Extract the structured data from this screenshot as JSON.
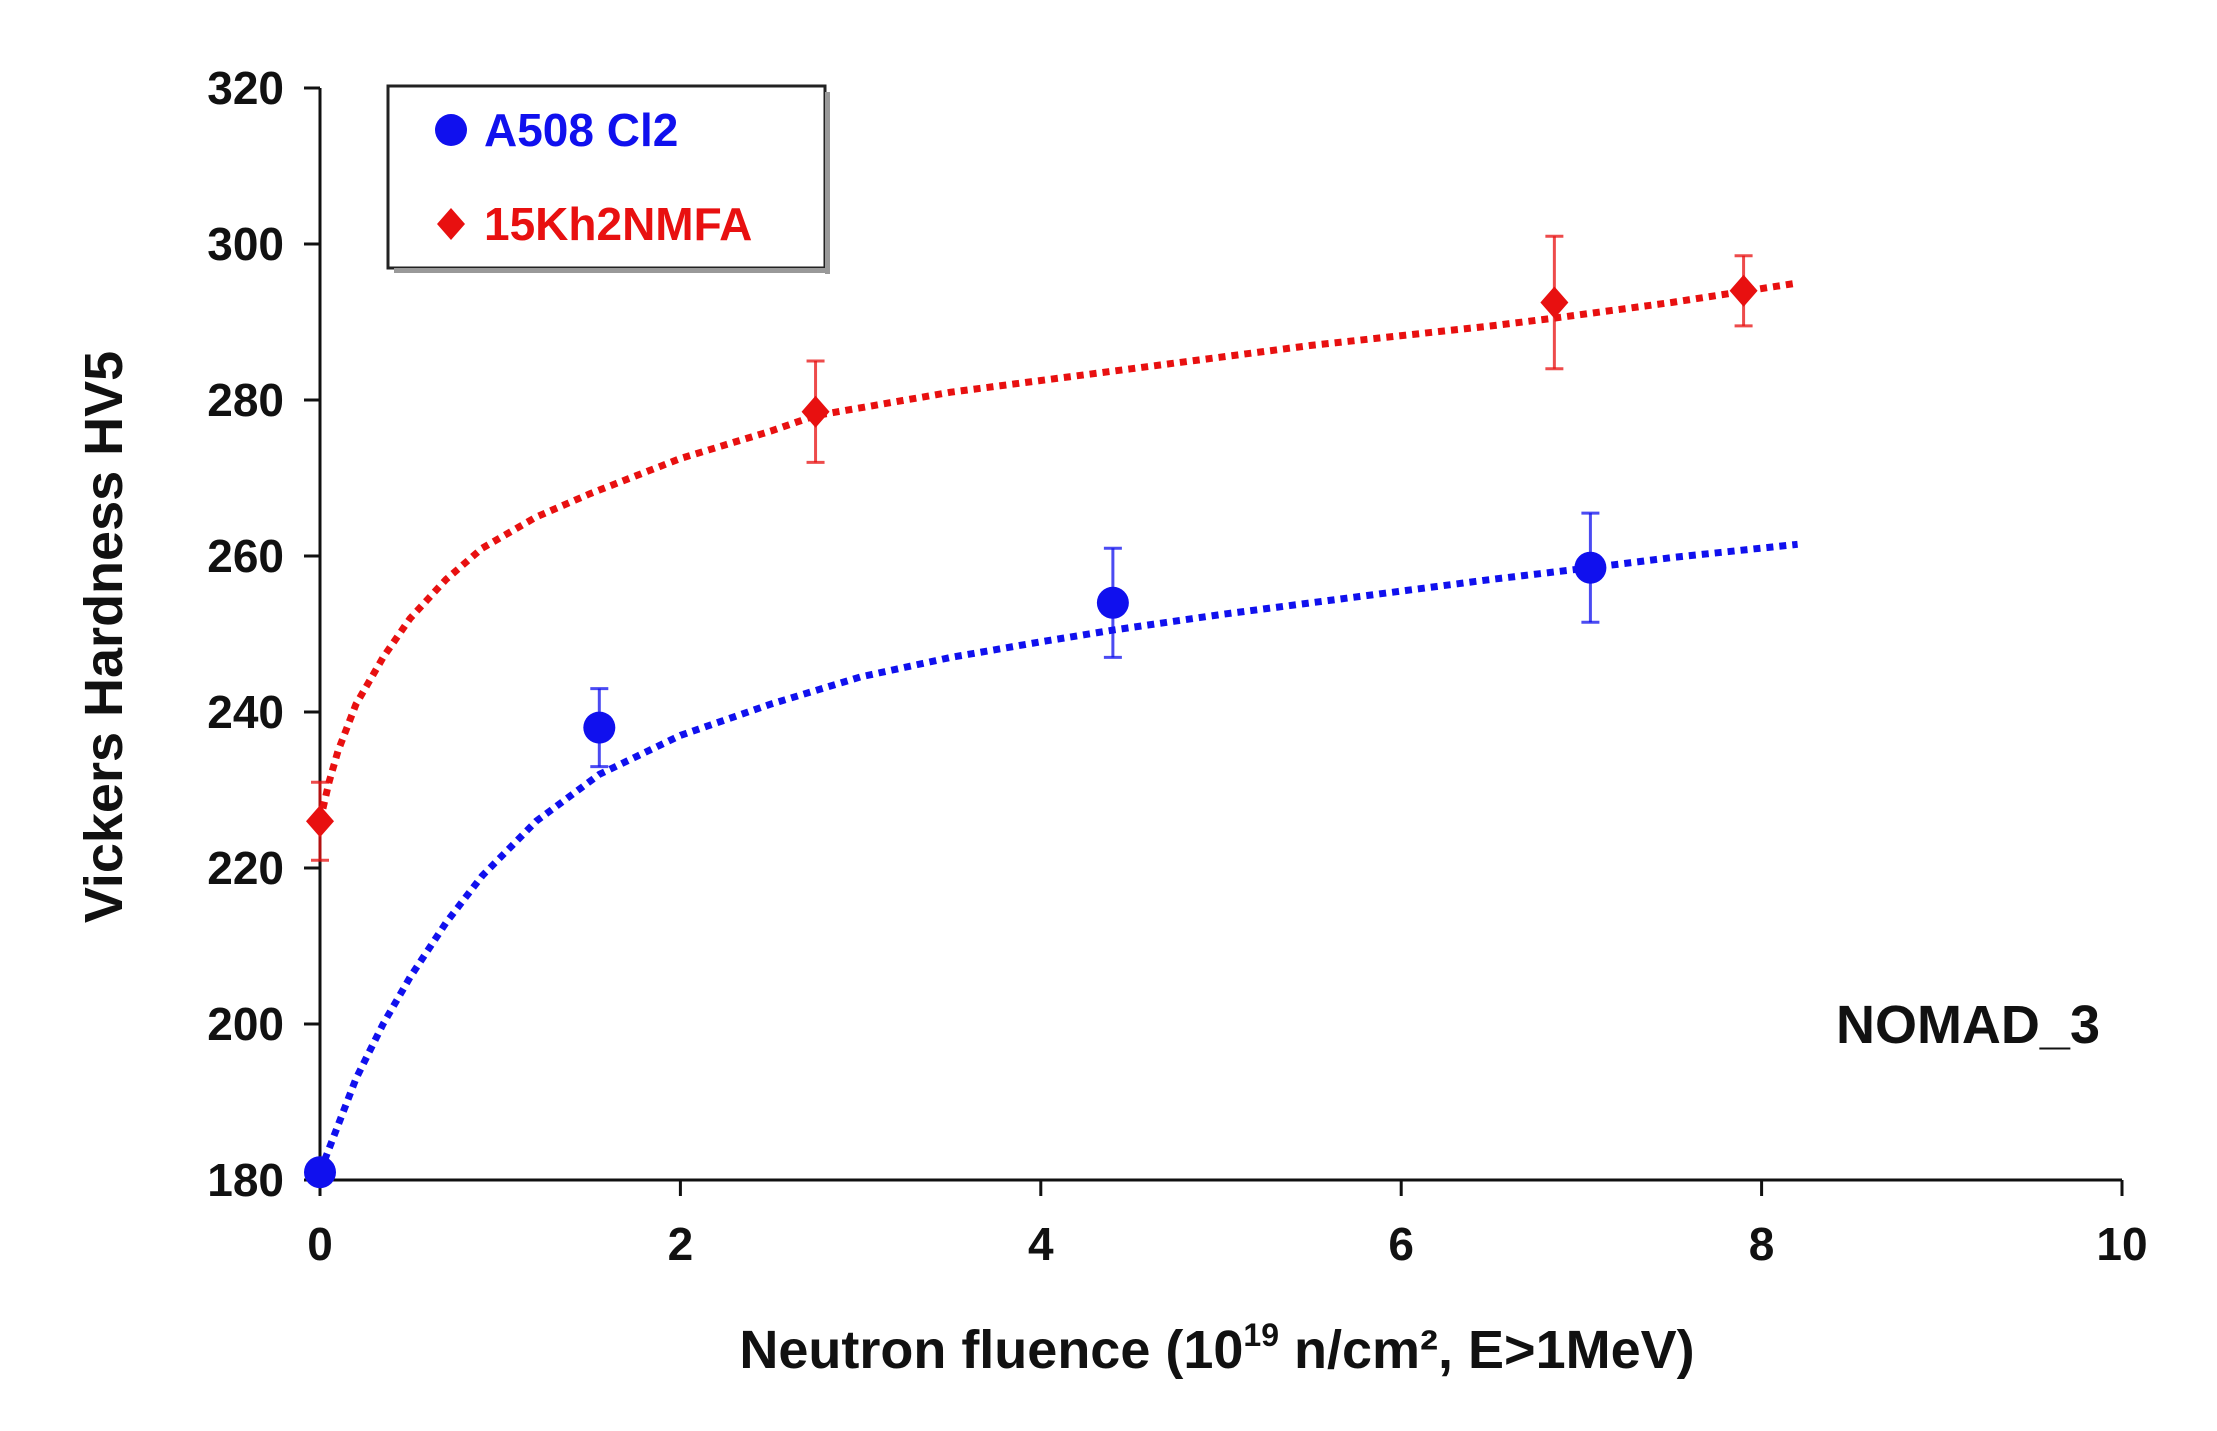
{
  "chart_data": {
    "type": "scatter",
    "title": "",
    "xlabel": "Neutron fluence (10",
    "xlabel_sup": "19",
    "xlabel_rest": " n/cm², E>1MeV)",
    "ylabel": "Vickers Hardness HV5",
    "xlim": [
      0,
      10
    ],
    "ylim": [
      180,
      320
    ],
    "xticks": [
      0,
      2,
      4,
      6,
      8,
      10
    ],
    "yticks": [
      180,
      200,
      220,
      240,
      260,
      280,
      300,
      320
    ],
    "grid": false,
    "legend_position": "top-left",
    "annotation": "NOMAD_3",
    "series": [
      {
        "name": "A508 Cl2",
        "color": "#1010ee",
        "marker": "circle",
        "x": [
          0,
          1.55,
          4.4,
          7.05
        ],
        "y": [
          181,
          238,
          254,
          258.5
        ],
        "err": [
          0,
          5,
          7,
          7
        ],
        "trend_x": [
          0,
          0.1,
          0.2,
          0.35,
          0.5,
          0.7,
          0.9,
          1.2,
          1.55,
          2,
          2.5,
          3,
          3.5,
          4,
          4.4,
          5,
          5.5,
          6,
          6.5,
          7.05,
          7.5,
          8.2
        ],
        "trend_y": [
          181,
          187,
          193,
          200,
          206,
          213,
          219,
          226,
          232,
          237,
          241,
          244.5,
          247,
          249,
          250.5,
          252.5,
          254,
          255.5,
          257,
          258.5,
          259.8,
          261.5
        ]
      },
      {
        "name": "15Kh2NMFA",
        "color": "#e81010",
        "marker": "diamond",
        "x": [
          0,
          2.75,
          6.85,
          7.9
        ],
        "y": [
          226,
          278.5,
          292.5,
          294
        ],
        "err": [
          5,
          6.5,
          8.5,
          4.5
        ],
        "trend_x": [
          0,
          0.05,
          0.1,
          0.2,
          0.35,
          0.5,
          0.7,
          0.9,
          1.2,
          1.5,
          2,
          2.5,
          2.75,
          3.5,
          4.5,
          5.5,
          6.5,
          6.85,
          7.5,
          8.2
        ],
        "trend_y": [
          226,
          231,
          235,
          241,
          247,
          252,
          257,
          261,
          265,
          268,
          272.5,
          276,
          278,
          281,
          284,
          287,
          289.5,
          290.5,
          292.5,
          295
        ]
      }
    ]
  }
}
